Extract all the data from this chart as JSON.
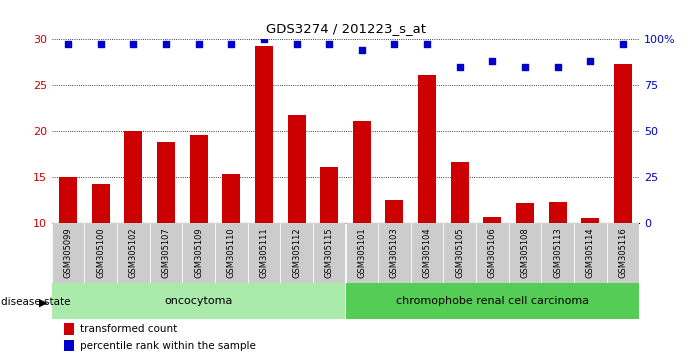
{
  "title": "GDS3274 / 201223_s_at",
  "samples": [
    "GSM305099",
    "GSM305100",
    "GSM305102",
    "GSM305107",
    "GSM305109",
    "GSM305110",
    "GSM305111",
    "GSM305112",
    "GSM305115",
    "GSM305101",
    "GSM305103",
    "GSM305104",
    "GSM305105",
    "GSM305106",
    "GSM305108",
    "GSM305113",
    "GSM305114",
    "GSM305116"
  ],
  "transformed_count": [
    15.0,
    14.2,
    20.0,
    18.8,
    19.6,
    15.3,
    29.2,
    21.7,
    16.1,
    21.1,
    12.5,
    26.1,
    16.6,
    10.7,
    12.2,
    12.3,
    10.5,
    27.3
  ],
  "percentile_rank": [
    97,
    97,
    97,
    97,
    97,
    97,
    100,
    97,
    97,
    94,
    97,
    97,
    85,
    88,
    85,
    85,
    88,
    97
  ],
  "ylim_left": [
    10,
    30
  ],
  "ylim_right": [
    0,
    100
  ],
  "yticks_left": [
    10,
    15,
    20,
    25,
    30
  ],
  "yticks_right": [
    0,
    25,
    50,
    75,
    100
  ],
  "bar_color": "#cc0000",
  "dot_color": "#0000cc",
  "oncocytoma_count": 9,
  "chromophobe_count": 9,
  "oncocytoma_label": "oncocytoma",
  "chromophobe_label": "chromophobe renal cell carcinoma",
  "disease_state_label": "disease state",
  "legend_bar_label": "transformed count",
  "legend_dot_label": "percentile rank within the sample",
  "tick_label_color_left": "#cc0000",
  "tick_label_color_right": "#0000cc",
  "xticklabel_bg": "#cccccc",
  "oncocytoma_bg": "#aaeaaa",
  "chromophobe_bg": "#55cc55"
}
